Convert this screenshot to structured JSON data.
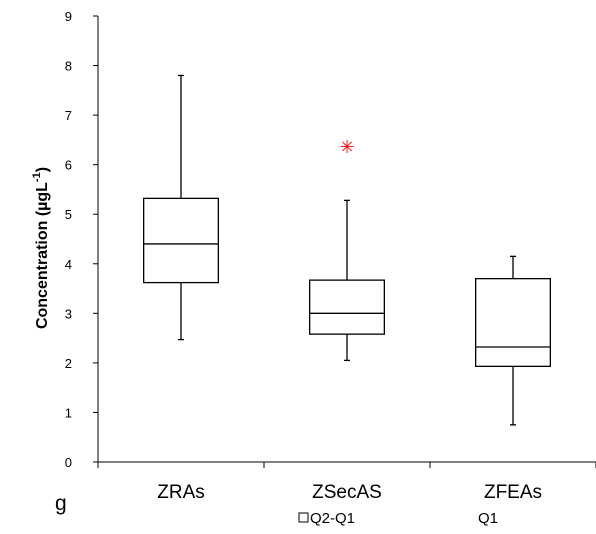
{
  "chart_data": {
    "type": "boxplot",
    "ylabel_main": "Concentration (µgL",
    "ylabel_sup": "-1",
    "ylabel_close": ")",
    "ylim": [
      0,
      9
    ],
    "yticks": [
      "0",
      "1",
      "2",
      "3",
      "4",
      "5",
      "6",
      "7",
      "8",
      "9"
    ],
    "categories": [
      "ZRAs",
      "ZSecAS",
      "ZFEAs"
    ],
    "boxes": [
      {
        "category": "ZRAs",
        "min": 2.47,
        "q1": 3.62,
        "median": 4.4,
        "q3": 5.32,
        "max": 7.8,
        "outliers": []
      },
      {
        "category": "ZSecAS",
        "min": 2.05,
        "q1": 2.58,
        "median": 3.0,
        "q3": 3.67,
        "max": 5.28,
        "outliers": [
          6.38
        ]
      },
      {
        "category": "ZFEAs",
        "min": 0.75,
        "q1": 1.93,
        "median": 2.32,
        "q3": 3.7,
        "max": 4.15,
        "outliers": []
      }
    ],
    "outlier_color": "#ff0000",
    "outlier_symbol": "✳",
    "legend": [
      "Q2-Q1",
      "Q1"
    ],
    "panel_label": "g"
  }
}
